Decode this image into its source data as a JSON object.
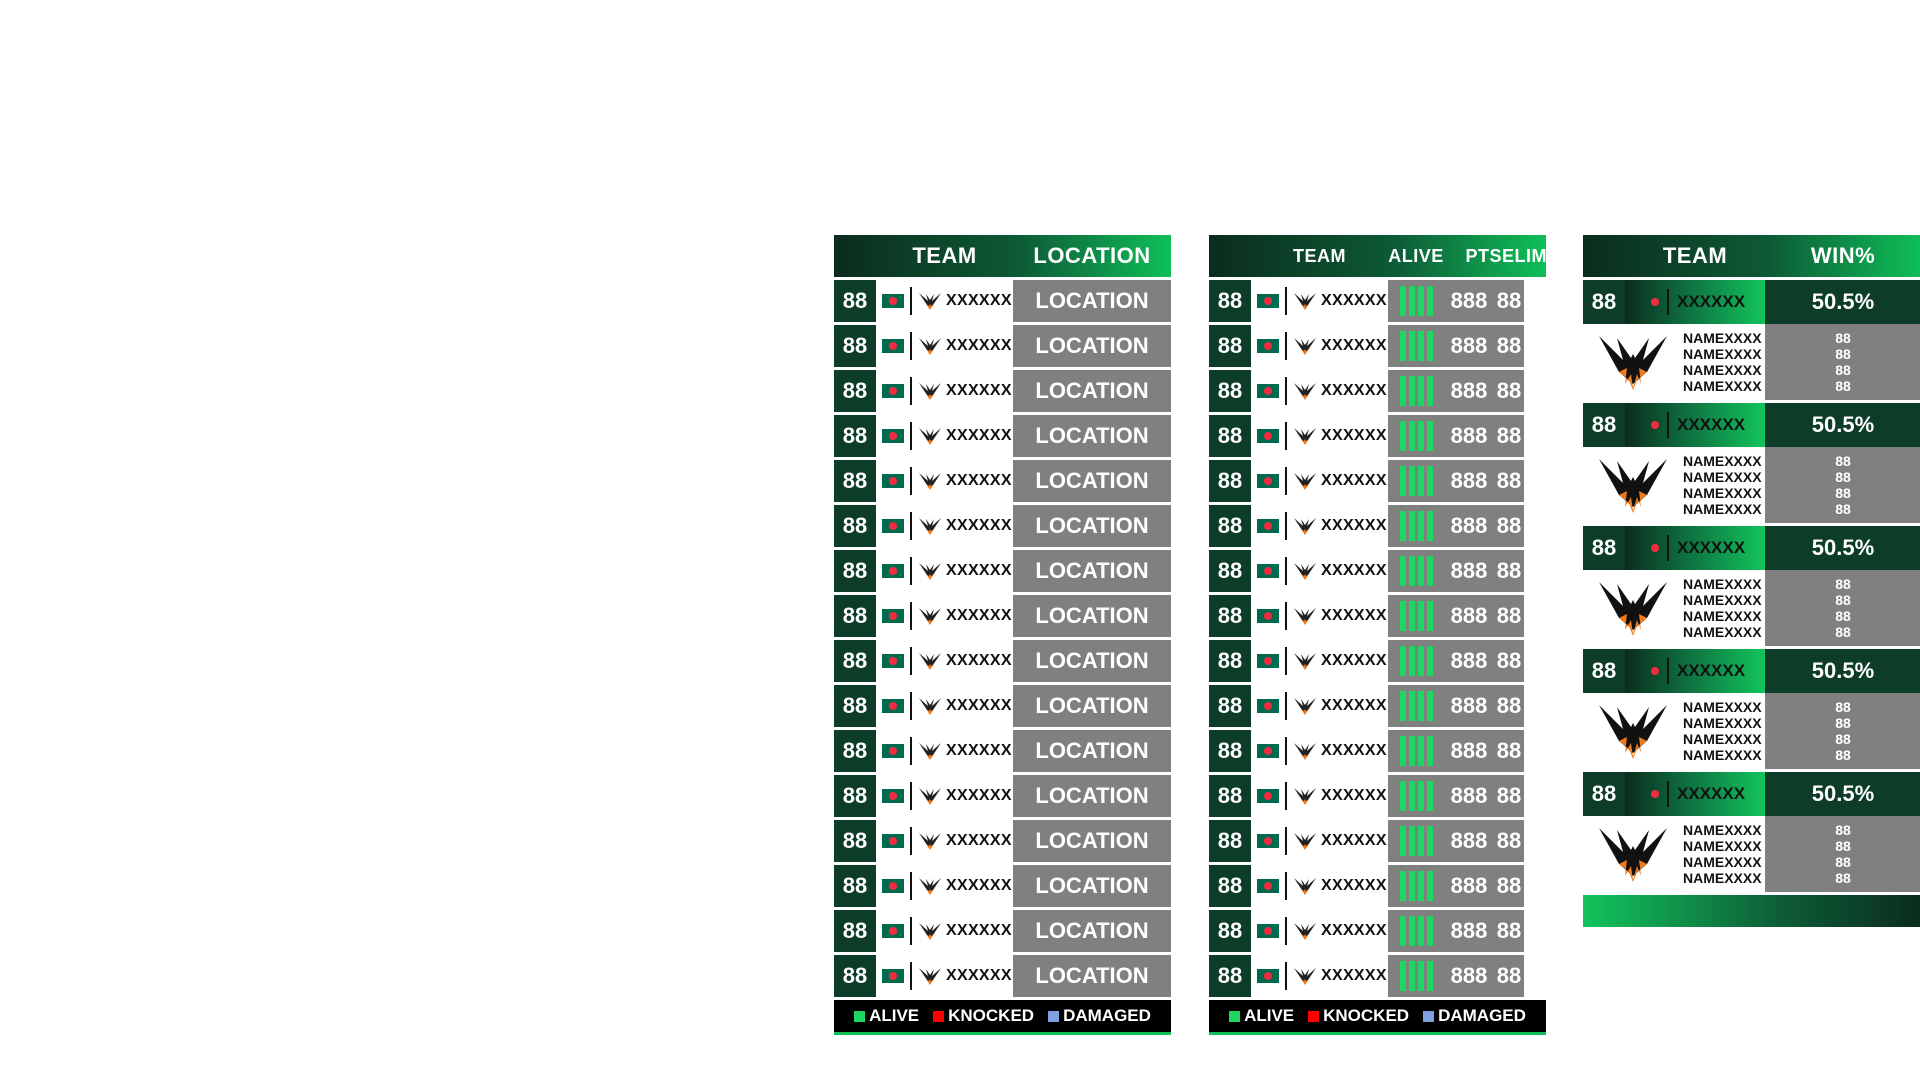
{
  "colors": {
    "accent_green": "#0fbf58",
    "dark_green": "#0d3d28",
    "cell_gray": "#808080",
    "alive": "#1ed760",
    "knocked": "#ff0000",
    "damaged": "#7f9fdf"
  },
  "panel1": {
    "header": {
      "team": "TEAM",
      "location": "LOCATION"
    },
    "rows": [
      {
        "rank": "88",
        "team": "XXXXXX",
        "location": "LOCATION"
      },
      {
        "rank": "88",
        "team": "XXXXXX",
        "location": "LOCATION"
      },
      {
        "rank": "88",
        "team": "XXXXXX",
        "location": "LOCATION"
      },
      {
        "rank": "88",
        "team": "XXXXXX",
        "location": "LOCATION"
      },
      {
        "rank": "88",
        "team": "XXXXXX",
        "location": "LOCATION"
      },
      {
        "rank": "88",
        "team": "XXXXXX",
        "location": "LOCATION"
      },
      {
        "rank": "88",
        "team": "XXXXXX",
        "location": "LOCATION"
      },
      {
        "rank": "88",
        "team": "XXXXXX",
        "location": "LOCATION"
      },
      {
        "rank": "88",
        "team": "XXXXXX",
        "location": "LOCATION"
      },
      {
        "rank": "88",
        "team": "XXXXXX",
        "location": "LOCATION"
      },
      {
        "rank": "88",
        "team": "XXXXXX",
        "location": "LOCATION"
      },
      {
        "rank": "88",
        "team": "XXXXXX",
        "location": "LOCATION"
      },
      {
        "rank": "88",
        "team": "XXXXXX",
        "location": "LOCATION"
      },
      {
        "rank": "88",
        "team": "XXXXXX",
        "location": "LOCATION"
      },
      {
        "rank": "88",
        "team": "XXXXXX",
        "location": "LOCATION"
      },
      {
        "rank": "88",
        "team": "XXXXXX",
        "location": "LOCATION"
      }
    ],
    "legend": {
      "alive": "ALIVE",
      "knocked": "KNOCKED",
      "damaged": "DAMAGED"
    }
  },
  "panel2": {
    "header": {
      "team": "TEAM",
      "alive": "ALIVE",
      "pts": "PTS",
      "elims": "ELIMS"
    },
    "rows": [
      {
        "rank": "88",
        "team": "XXXXXX",
        "pts": "888",
        "elims": "88"
      },
      {
        "rank": "88",
        "team": "XXXXXX",
        "pts": "888",
        "elims": "88"
      },
      {
        "rank": "88",
        "team": "XXXXXX",
        "pts": "888",
        "elims": "88"
      },
      {
        "rank": "88",
        "team": "XXXXXX",
        "pts": "888",
        "elims": "88"
      },
      {
        "rank": "88",
        "team": "XXXXXX",
        "pts": "888",
        "elims": "88"
      },
      {
        "rank": "88",
        "team": "XXXXXX",
        "pts": "888",
        "elims": "88"
      },
      {
        "rank": "88",
        "team": "XXXXXX",
        "pts": "888",
        "elims": "88"
      },
      {
        "rank": "88",
        "team": "XXXXXX",
        "pts": "888",
        "elims": "88"
      },
      {
        "rank": "88",
        "team": "XXXXXX",
        "pts": "888",
        "elims": "88"
      },
      {
        "rank": "88",
        "team": "XXXXXX",
        "pts": "888",
        "elims": "88"
      },
      {
        "rank": "88",
        "team": "XXXXXX",
        "pts": "888",
        "elims": "88"
      },
      {
        "rank": "88",
        "team": "XXXXXX",
        "pts": "888",
        "elims": "88"
      },
      {
        "rank": "88",
        "team": "XXXXXX",
        "pts": "888",
        "elims": "88"
      },
      {
        "rank": "88",
        "team": "XXXXXX",
        "pts": "888",
        "elims": "88"
      },
      {
        "rank": "88",
        "team": "XXXXXX",
        "pts": "888",
        "elims": "88"
      },
      {
        "rank": "88",
        "team": "XXXXXX",
        "pts": "888",
        "elims": "88"
      }
    ],
    "legend": {
      "alive": "ALIVE",
      "knocked": "KNOCKED",
      "damaged": "DAMAGED"
    }
  },
  "panel3": {
    "header": {
      "team": "TEAM",
      "win": "WIN%"
    },
    "teams": [
      {
        "rank": "88",
        "team": "XXXXXX",
        "win": "50.5%",
        "players": [
          {
            "name": "NAMEXXXX",
            "val": "88"
          },
          {
            "name": "NAMEXXXX",
            "val": "88"
          },
          {
            "name": "NAMEXXXX",
            "val": "88"
          },
          {
            "name": "NAMEXXXX",
            "val": "88"
          }
        ]
      },
      {
        "rank": "88",
        "team": "XXXXXX",
        "win": "50.5%",
        "players": [
          {
            "name": "NAMEXXXX",
            "val": "88"
          },
          {
            "name": "NAMEXXXX",
            "val": "88"
          },
          {
            "name": "NAMEXXXX",
            "val": "88"
          },
          {
            "name": "NAMEXXXX",
            "val": "88"
          }
        ]
      },
      {
        "rank": "88",
        "team": "XXXXXX",
        "win": "50.5%",
        "players": [
          {
            "name": "NAMEXXXX",
            "val": "88"
          },
          {
            "name": "NAMEXXXX",
            "val": "88"
          },
          {
            "name": "NAMEXXXX",
            "val": "88"
          },
          {
            "name": "NAMEXXXX",
            "val": "88"
          }
        ]
      },
      {
        "rank": "88",
        "team": "XXXXXX",
        "win": "50.5%",
        "players": [
          {
            "name": "NAMEXXXX",
            "val": "88"
          },
          {
            "name": "NAMEXXXX",
            "val": "88"
          },
          {
            "name": "NAMEXXXX",
            "val": "88"
          },
          {
            "name": "NAMEXXXX",
            "val": "88"
          }
        ]
      },
      {
        "rank": "88",
        "team": "XXXXXX",
        "win": "50.5%",
        "players": [
          {
            "name": "NAMEXXXX",
            "val": "88"
          },
          {
            "name": "NAMEXXXX",
            "val": "88"
          },
          {
            "name": "NAMEXXXX",
            "val": "88"
          },
          {
            "name": "NAMEXXXX",
            "val": "88"
          }
        ]
      }
    ]
  }
}
